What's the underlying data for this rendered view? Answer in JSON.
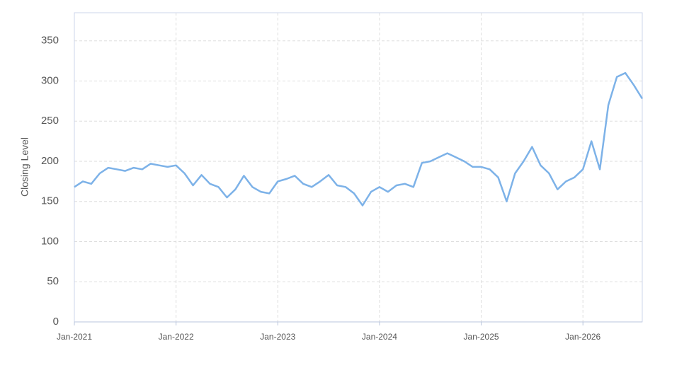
{
  "chart_data": {
    "type": "line",
    "y_label": "Closing Level",
    "x": [
      "2021-01",
      "2021-02",
      "2021-03",
      "2021-04",
      "2021-05",
      "2021-06",
      "2021-07",
      "2021-08",
      "2021-09",
      "2021-10",
      "2021-11",
      "2021-12",
      "2022-01",
      "2022-02",
      "2022-03",
      "2022-04",
      "2022-05",
      "2022-06",
      "2022-07",
      "2022-08",
      "2022-09",
      "2022-10",
      "2022-11",
      "2022-12",
      "2023-01",
      "2023-02",
      "2023-03",
      "2023-04",
      "2023-05",
      "2023-06",
      "2023-07",
      "2023-08",
      "2023-09",
      "2023-10",
      "2023-11",
      "2023-12",
      "2024-01",
      "2024-02",
      "2024-03",
      "2024-04",
      "2024-05",
      "2024-06",
      "2024-07",
      "2024-08",
      "2024-09",
      "2024-10",
      "2024-11",
      "2024-12",
      "2025-01",
      "2025-02",
      "2025-03",
      "2025-04",
      "2025-05",
      "2025-06",
      "2025-07",
      "2025-08",
      "2025-09",
      "2025-10",
      "2025-11",
      "2025-12",
      "2026-01",
      "2026-02",
      "2026-03",
      "2026-04",
      "2026-05",
      "2026-06",
      "2026-07",
      "2026-08"
    ],
    "series": [
      {
        "name": "Closing Level",
        "color": "#7db2e8",
        "values": [
          168,
          175,
          172,
          185,
          192,
          190,
          188,
          192,
          190,
          197,
          195,
          193,
          195,
          185,
          170,
          183,
          172,
          168,
          155,
          165,
          182,
          168,
          162,
          160,
          175,
          178,
          182,
          172,
          168,
          175,
          183,
          170,
          168,
          160,
          145,
          162,
          168,
          162,
          170,
          172,
          168,
          198,
          200,
          205,
          210,
          205,
          200,
          193,
          193,
          190,
          180,
          150,
          185,
          200,
          218,
          195,
          185,
          165,
          175,
          180,
          190,
          225,
          190,
          270,
          305,
          310,
          295,
          278
        ]
      }
    ],
    "xlim": [
      "2021-01",
      "2026-08"
    ],
    "xticks": [
      {
        "value": "2021-01",
        "label": "Jan-2021"
      },
      {
        "value": "2022-01",
        "label": "Jan-2022"
      },
      {
        "value": "2023-01",
        "label": "Jan-2023"
      },
      {
        "value": "2024-01",
        "label": "Jan-2024"
      },
      {
        "value": "2025-01",
        "label": "Jan-2025"
      },
      {
        "value": "2026-01",
        "label": "Jan-2026"
      }
    ],
    "ylim": [
      0,
      385
    ],
    "yticks": [
      0,
      50,
      100,
      150,
      200,
      250,
      300,
      350
    ],
    "grid": true
  }
}
